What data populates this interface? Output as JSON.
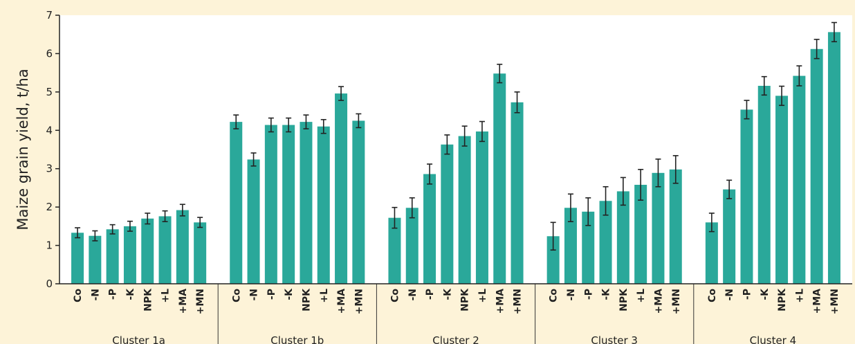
{
  "chart_data": {
    "type": "bar",
    "ylabel": "Maize grain yield, t/ha",
    "ylim": [
      0,
      7
    ],
    "yticks": [
      0,
      1,
      2,
      3,
      4,
      5,
      6,
      7
    ],
    "grid": false,
    "bar_color": "#2aa89a",
    "background_color": "#fdf3d8",
    "plot_background_color": "#ffffff",
    "categories": [
      "Co",
      "-N",
      "-P",
      "-K",
      "NPK",
      "+L",
      "+MA",
      "+MN"
    ],
    "groups": [
      {
        "name": "Cluster 1a",
        "values": [
          1.33,
          1.25,
          1.42,
          1.5,
          1.7,
          1.76,
          1.92,
          1.6
        ],
        "errors": [
          0.13,
          0.13,
          0.12,
          0.13,
          0.14,
          0.14,
          0.15,
          0.13
        ]
      },
      {
        "name": "Cluster 1b",
        "values": [
          4.22,
          3.24,
          4.14,
          4.14,
          4.22,
          4.1,
          4.96,
          4.25
        ],
        "errors": [
          0.18,
          0.17,
          0.18,
          0.18,
          0.18,
          0.18,
          0.18,
          0.18
        ]
      },
      {
        "name": "Cluster 2",
        "values": [
          1.72,
          1.98,
          2.86,
          3.63,
          3.85,
          3.97,
          5.48,
          4.73
        ],
        "errors": [
          0.27,
          0.26,
          0.26,
          0.25,
          0.26,
          0.26,
          0.24,
          0.27
        ]
      },
      {
        "name": "Cluster 3",
        "values": [
          1.24,
          1.98,
          1.88,
          2.16,
          2.41,
          2.58,
          2.89,
          2.98
        ],
        "errors": [
          0.36,
          0.36,
          0.36,
          0.37,
          0.36,
          0.4,
          0.36,
          0.36
        ]
      },
      {
        "name": "Cluster 4",
        "values": [
          1.6,
          2.46,
          4.54,
          5.16,
          4.9,
          5.42,
          6.12,
          6.56
        ],
        "errors": [
          0.24,
          0.24,
          0.24,
          0.24,
          0.25,
          0.26,
          0.25,
          0.25
        ]
      }
    ]
  }
}
